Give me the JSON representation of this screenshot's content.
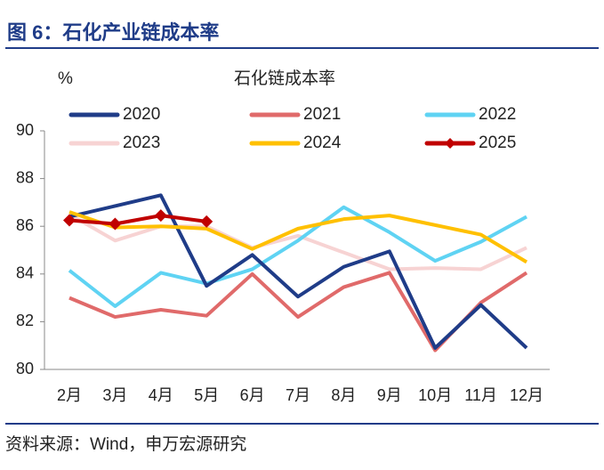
{
  "header": {
    "title": "图 6：石化产业链成本率"
  },
  "chart_data": {
    "type": "line",
    "title": "石化链成本率",
    "y_label": "%",
    "categories": [
      "2月",
      "3月",
      "4月",
      "5月",
      "6月",
      "7月",
      "8月",
      "9月",
      "10月",
      "11月",
      "12月"
    ],
    "series": [
      {
        "name": "2020",
        "color": "#1f3c88",
        "values": [
          86.4,
          86.85,
          87.3,
          83.5,
          84.8,
          83.05,
          84.3,
          84.95,
          80.9,
          82.7,
          80.9
        ]
      },
      {
        "name": "2021",
        "color": "#e06a6a",
        "values": [
          83.0,
          82.2,
          82.5,
          82.25,
          84.0,
          82.2,
          83.45,
          84.05,
          80.8,
          82.8,
          84.05
        ]
      },
      {
        "name": "2022",
        "color": "#5fd3f3",
        "values": [
          84.15,
          82.65,
          84.05,
          83.6,
          84.2,
          85.4,
          86.8,
          85.75,
          84.55,
          85.35,
          86.4
        ]
      },
      {
        "name": "2023",
        "color": "#f7d3d3",
        "values": [
          86.5,
          85.4,
          86.0,
          86.0,
          85.1,
          85.6,
          84.9,
          84.2,
          84.25,
          84.2,
          85.1
        ]
      },
      {
        "name": "2024",
        "color": "#ffc000",
        "values": [
          86.6,
          85.95,
          86.0,
          85.9,
          85.05,
          85.9,
          86.3,
          86.45,
          86.05,
          85.65,
          84.5
        ]
      },
      {
        "name": "2025",
        "color": "#c00000",
        "marker": "diamond",
        "values": [
          86.25,
          86.1,
          86.45,
          86.2,
          null,
          null,
          null,
          null,
          null,
          null,
          null
        ]
      }
    ],
    "ylim": [
      80,
      90
    ],
    "yticks": [
      80,
      82,
      84,
      86,
      88,
      90
    ],
    "grid": false
  },
  "footer": {
    "source": "资料来源：Wind，申万宏源研究"
  }
}
